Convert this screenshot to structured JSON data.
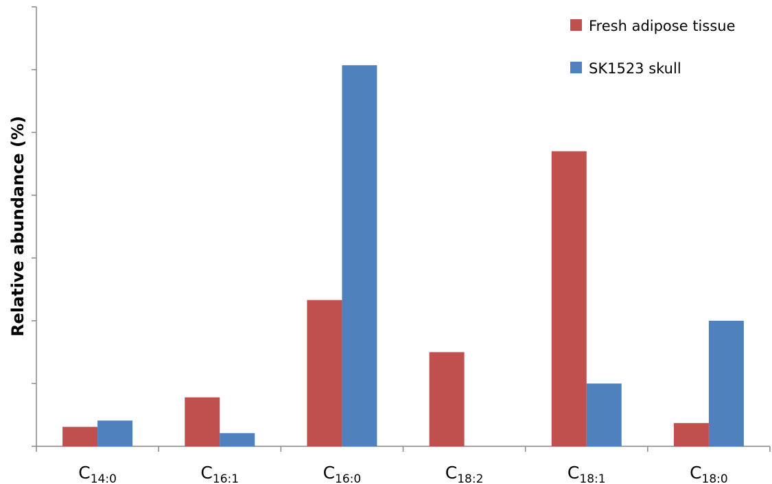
{
  "chart_data": {
    "type": "bar",
    "title": "",
    "xlabel": "",
    "ylabel": "Relative abundance (%)",
    "ylim": [
      0,
      7
    ],
    "y_tick_labels_shown": false,
    "categories": [
      {
        "base": "C",
        "sub": "14:0"
      },
      {
        "base": "C",
        "sub": "16:1"
      },
      {
        "base": "C",
        "sub": "16:0"
      },
      {
        "base": "C",
        "sub": "18:2"
      },
      {
        "base": "C",
        "sub": "18:1"
      },
      {
        "base": "C",
        "sub": "18:0"
      }
    ],
    "series": [
      {
        "name": "Fresh adipose tissue",
        "color": "#c0504d",
        "values": [
          0.31,
          0.78,
          2.33,
          1.5,
          4.7,
          0.37
        ]
      },
      {
        "name": "SK1523 skull",
        "color": "#4f81bd",
        "values": [
          0.41,
          0.21,
          6.07,
          0.0,
          1.0,
          2.0
        ]
      }
    ],
    "legend_position": "top-right",
    "grid": false
  }
}
